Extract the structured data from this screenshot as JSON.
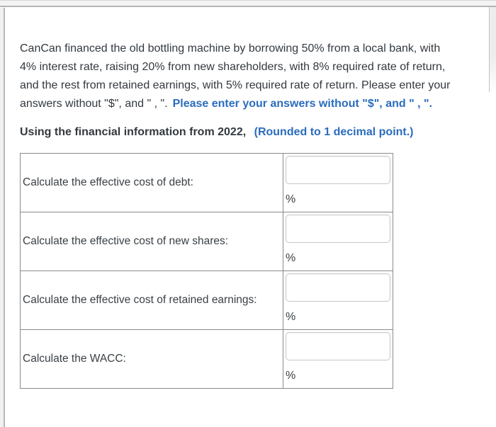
{
  "intro": {
    "line1": "CanCan financed the old bottling machine by borrowing 50% from a local bank, with",
    "line2": "4% interest rate, raising 20% from new shareholders, with 8% required rate of return,",
    "line3": "and the rest from retained earnings, with 5% required rate of return. Please enter your",
    "line4_black": "answers without \"$\", and \" , \".",
    "line4_blue": "Please enter your answers without \"$\", and \" , \"."
  },
  "subheading": {
    "text_black": "Using the financial information from 2022,",
    "text_blue": "(Rounded to 1 decimal point.)"
  },
  "table": {
    "rows": [
      {
        "label": "Calculate the effective cost of debt:",
        "input_value": "",
        "unit": "%"
      },
      {
        "label": "Calculate the effective cost of new shares:",
        "input_value": "",
        "unit": "%"
      },
      {
        "label": "Calculate the effective cost of retained earnings:",
        "input_value": "",
        "unit": "%"
      },
      {
        "label": "Calculate the WACC:",
        "input_value": "",
        "unit": "%"
      }
    ]
  },
  "colors": {
    "accent_blue": "#2b6cbe",
    "body_text": "#33393f",
    "table_border": "#8a8a8a"
  }
}
